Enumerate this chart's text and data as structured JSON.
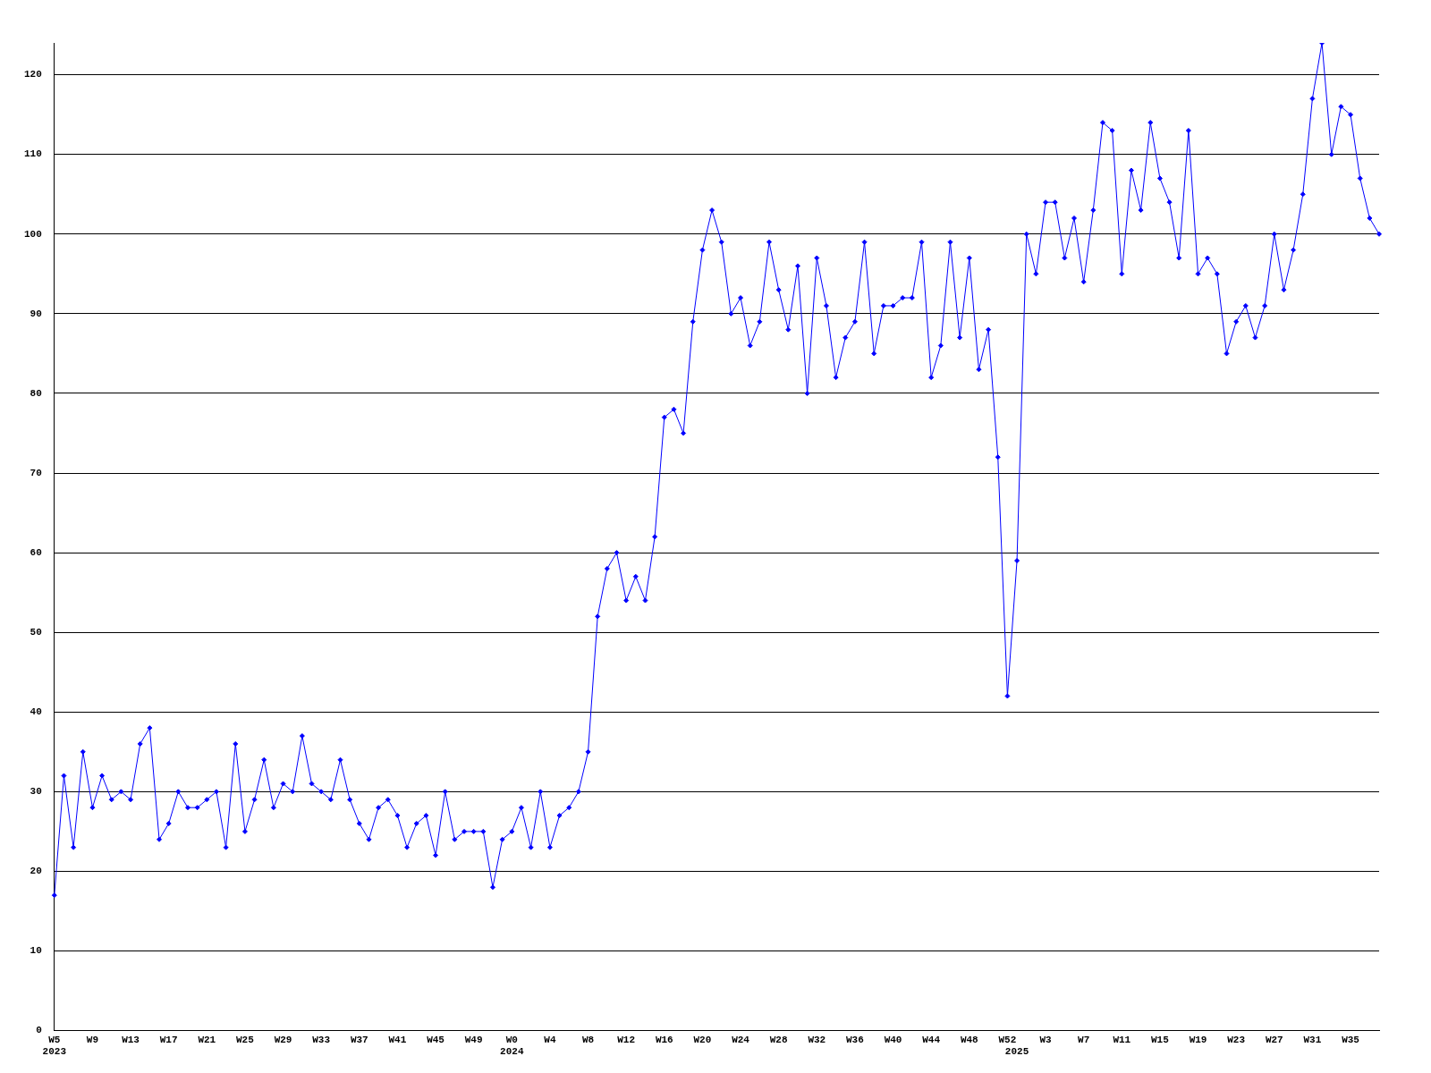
{
  "chart_data": {
    "type": "line",
    "categories": [
      "W5\n2023",
      null,
      null,
      null,
      "W9",
      null,
      null,
      null,
      "W13",
      null,
      null,
      null,
      "W17",
      null,
      null,
      null,
      "W21",
      null,
      null,
      null,
      "W25",
      null,
      null,
      null,
      "W29",
      null,
      null,
      null,
      "W33",
      null,
      null,
      null,
      "W37",
      null,
      null,
      null,
      "W41",
      null,
      null,
      null,
      "W45",
      null,
      null,
      null,
      "W49",
      null,
      null,
      null,
      "W0\n2024",
      null,
      null,
      null,
      "W4",
      null,
      null,
      null,
      "W8",
      null,
      null,
      null,
      "W12",
      null,
      null,
      null,
      "W16",
      null,
      null,
      null,
      "W20",
      null,
      null,
      null,
      "W24",
      null,
      null,
      null,
      "W28",
      null,
      null,
      null,
      "W32",
      null,
      null,
      null,
      "W36",
      null,
      null,
      null,
      "W40",
      null,
      null,
      null,
      "W44",
      null,
      null,
      null,
      "W48",
      null,
      null,
      null,
      "W52",
      "\n2025",
      null,
      null,
      "W3",
      null,
      null,
      null,
      "W7",
      null,
      null,
      null,
      "W11",
      null,
      null,
      null,
      "W15",
      null,
      null,
      null,
      "W19",
      null,
      null,
      null,
      "W23",
      null,
      null,
      null,
      "W27",
      null,
      null,
      null,
      "W31",
      null,
      null,
      null,
      "W35",
      null,
      null,
      null
    ],
    "series": [
      {
        "color": "#0000ff",
        "values": [
          17,
          32,
          23,
          35,
          28,
          32,
          29,
          30,
          29,
          36,
          38,
          24,
          26,
          30,
          28,
          28,
          29,
          30,
          23,
          36,
          25,
          29,
          34,
          28,
          31,
          30,
          37,
          31,
          30,
          29,
          34,
          29,
          26,
          24,
          28,
          29,
          27,
          23,
          26,
          27,
          22,
          30,
          24,
          25,
          25,
          25,
          18,
          24,
          25,
          28,
          23,
          30,
          23,
          27,
          28,
          30,
          35,
          52,
          58,
          60,
          54,
          57,
          54,
          62,
          77,
          78,
          75,
          89,
          98,
          103,
          99,
          90,
          92,
          86,
          89,
          99,
          93,
          88,
          96,
          80,
          97,
          91,
          82,
          87,
          89,
          99,
          85,
          91,
          91,
          92,
          92,
          99,
          82,
          86,
          99,
          87,
          97,
          83,
          88,
          72,
          42,
          59,
          100,
          95,
          104,
          104,
          97,
          102,
          94,
          103,
          114,
          113,
          95,
          108,
          103,
          114,
          107,
          104,
          97,
          113,
          95,
          97,
          95,
          85,
          89,
          91,
          87,
          91,
          100,
          93,
          98,
          105,
          117,
          124,
          110,
          116,
          115,
          107,
          102,
          100
        ]
      }
    ],
    "ylim": [
      0,
      124
    ],
    "yticks": [
      0,
      10,
      20,
      30,
      40,
      50,
      60,
      70,
      80,
      90,
      100,
      110,
      120
    ],
    "grid": "y",
    "legend": false,
    "marker": "diamond",
    "line_style": "solid"
  }
}
